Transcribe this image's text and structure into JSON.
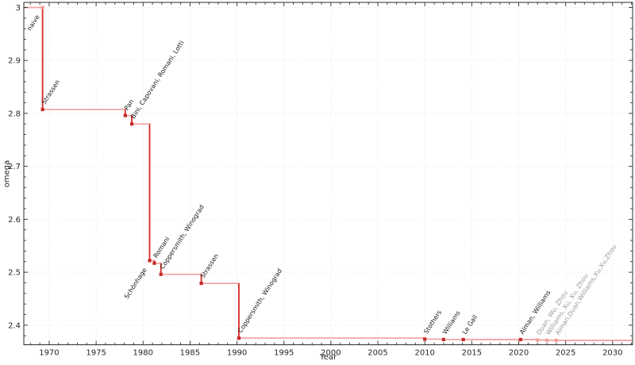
{
  "chart_data": {
    "type": "line",
    "subtype": "step-post",
    "title": "",
    "xlabel": "Year",
    "ylabel": "omega",
    "xlim": [
      1967.3,
      2032.13
    ],
    "ylim": [
      2.363,
      3.0097
    ],
    "x_major_ticks": [
      1970,
      1975,
      1980,
      1985,
      1990,
      1995,
      2000,
      2005,
      2010,
      2015,
      2020,
      2025,
      2030
    ],
    "x_minor_step": 1,
    "y_major_ticks": [
      2.4,
      2.5,
      2.6,
      2.7,
      2.8,
      2.9,
      3.0
    ],
    "y_minor_step": 0.02,
    "grid": {
      "major": true,
      "minor": false,
      "style": "dotted"
    },
    "legend": null,
    "points": [
      {
        "year": 1969.3,
        "omega": 3.0,
        "label": "naive",
        "label_side": "below",
        "muted_marker": true,
        "muted_label": false
      },
      {
        "year": 1969.3,
        "omega": 2.8074,
        "label": "Strassen",
        "label_side": "above",
        "muted_marker": false,
        "muted_label": false
      },
      {
        "year": 1978.1,
        "omega": 2.796,
        "label": "Pan",
        "label_side": "above",
        "muted_marker": false,
        "muted_label": false
      },
      {
        "year": 1978.8,
        "omega": 2.78,
        "label": "Bini, Capovani, Romani, Lotti",
        "label_side": "above",
        "muted_marker": false,
        "muted_label": false
      },
      {
        "year": 1980.7,
        "omega": 2.522,
        "label": "Schönhage",
        "label_side": "below",
        "muted_marker": false,
        "muted_label": false
      },
      {
        "year": 1981.2,
        "omega": 2.517,
        "label": "Romani",
        "label_side": "above",
        "muted_marker": false,
        "muted_label": false
      },
      {
        "year": 1981.9,
        "omega": 2.496,
        "label": "Coppersmith, Winograd",
        "label_side": "above",
        "muted_marker": false,
        "muted_label": false
      },
      {
        "year": 1986.2,
        "omega": 2.479,
        "label": "Strassen",
        "label_side": "above",
        "muted_marker": false,
        "muted_label": false
      },
      {
        "year": 1990.2,
        "omega": 2.3755,
        "label": "Coppersmith, Winograd",
        "label_side": "above",
        "muted_marker": false,
        "muted_label": false
      },
      {
        "year": 2010.0,
        "omega": 2.3737,
        "label": "Stothers",
        "label_side": "above",
        "muted_marker": false,
        "muted_label": false
      },
      {
        "year": 2012.0,
        "omega": 2.372873,
        "label": "Williams",
        "label_side": "above",
        "muted_marker": false,
        "muted_label": false
      },
      {
        "year": 2014.1,
        "omega": 2.3728639,
        "label": "Le Gall",
        "label_side": "above",
        "muted_marker": false,
        "muted_label": false
      },
      {
        "year": 2020.2,
        "omega": 2.3728596,
        "label": "Alman, Williams",
        "label_side": "above",
        "muted_marker": false,
        "muted_label": false
      },
      {
        "year": 2022.0,
        "omega": 2.371866,
        "label": "Duan, Wu, Zhou",
        "label_side": "above",
        "muted_marker": true,
        "muted_label": true
      },
      {
        "year": 2023.0,
        "omega": 2.371552,
        "label": "Williams, Xu, Xu, Zhou",
        "label_side": "above",
        "muted_marker": true,
        "muted_label": true
      },
      {
        "year": 2024.0,
        "omega": 2.371339,
        "label": "Alman,Duan,Williams,Xu,Xu,Zhou",
        "label_side": "above",
        "muted_marker": true,
        "muted_label": true
      }
    ],
    "colors": {
      "line_horizontal": "#f2a6a4",
      "line_vertical": "#d92e2c",
      "marker": "#c62b28",
      "marker_muted": "#f29d9b",
      "label": "#1a1a1a",
      "label_muted": "#9a9a9a",
      "axis": "#2b2b2b",
      "tick_label": "#262626",
      "grid": "#dedede",
      "background": "#ffffff"
    }
  }
}
